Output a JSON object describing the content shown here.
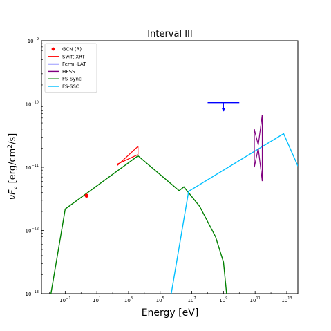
{
  "chart_data": {
    "type": "line",
    "title": "Interval III",
    "xlabel": "Energy [eV]",
    "ylabel": {
      "base": "νF",
      "sub": "ν",
      "text": " [erg/cm",
      "sup": "2",
      "tail": "/s]"
    },
    "xscale": "log",
    "yscale": "log",
    "xlim_exp": [
      -2.5,
      13.7
    ],
    "ylim_exp": [
      -13,
      -9
    ],
    "x_ticks": [
      {
        "base": "10",
        "exp": "−1",
        "e": -1
      },
      {
        "base": "10",
        "exp": "1",
        "e": 1
      },
      {
        "base": "10",
        "exp": "3",
        "e": 3
      },
      {
        "base": "10",
        "exp": "5",
        "e": 5
      },
      {
        "base": "10",
        "exp": "7",
        "e": 7
      },
      {
        "base": "10",
        "exp": "9",
        "e": 9
      },
      {
        "base": "10",
        "exp": "11",
        "e": 11
      },
      {
        "base": "10",
        "exp": "13",
        "e": 13
      }
    ],
    "y_ticks": [
      {
        "base": "10",
        "exp": "−13",
        "e": -13
      },
      {
        "base": "10",
        "exp": "−12",
        "e": -12
      },
      {
        "base": "10",
        "exp": "−11",
        "e": -11
      },
      {
        "base": "10",
        "exp": "−10",
        "e": -10
      },
      {
        "base": "10",
        "exp": "−9",
        "e": -9
      }
    ],
    "legend": {
      "placement": "upper-left",
      "entries": [
        {
          "label": "GCN (R)",
          "color": "#ff0000",
          "marker": "dot"
        },
        {
          "label": "Swift-XRT",
          "color": "#ff0000",
          "marker": "line"
        },
        {
          "label": "Fermi-LAT",
          "color": "#0000ff",
          "marker": "line"
        },
        {
          "label": "HESS",
          "color": "#800080",
          "marker": "line"
        },
        {
          "label": "FS-Sync",
          "color": "#008000",
          "marker": "line"
        },
        {
          "label": "FS-SSC",
          "color": "#00bfff",
          "marker": "line"
        }
      ]
    },
    "series": [
      {
        "name": "FS-Sync",
        "color": "#008000",
        "kind": "line",
        "log_points": [
          [
            -1.9,
            -13
          ],
          [
            -1.0,
            -11.66
          ],
          [
            3.6,
            -10.82
          ],
          [
            6.2,
            -11.37
          ],
          [
            6.5,
            -11.31
          ],
          [
            7.5,
            -11.62
          ],
          [
            8.5,
            -12.1
          ],
          [
            9.0,
            -12.5
          ],
          [
            9.2,
            -13
          ]
        ]
      },
      {
        "name": "FS-SSC",
        "color": "#00bfff",
        "kind": "line",
        "log_points": [
          [
            5.7,
            -13
          ],
          [
            6.8,
            -11.38
          ],
          [
            12.8,
            -10.47
          ],
          [
            13.7,
            -10.98
          ]
        ]
      },
      {
        "name": "GCN (R)",
        "color": "#ff0000",
        "kind": "point",
        "log_points": [
          [
            0.35,
            -11.45
          ]
        ]
      },
      {
        "name": "Swift-XRT",
        "color": "#ff0000",
        "kind": "bowtie",
        "lower": [
          [
            2.3,
            -10.95
          ],
          [
            3.6,
            -10.8
          ]
        ],
        "upper": [
          [
            2.3,
            -10.97
          ],
          [
            3.6,
            -10.67
          ]
        ],
        "x_range": [
          2.3,
          3.6
        ]
      },
      {
        "name": "Fermi-LAT",
        "color": "#0000ff",
        "kind": "upper_limit",
        "log_points": [
          [
            9.0,
            -9.98
          ]
        ],
        "x_range": [
          8.0,
          10.0
        ]
      },
      {
        "name": "HESS",
        "color": "#800080",
        "kind": "bowtie",
        "lower": [
          [
            10.95,
            -11.0
          ],
          [
            11.2,
            -10.7
          ],
          [
            11.45,
            -11.22
          ]
        ],
        "upper": [
          [
            10.95,
            -10.4
          ],
          [
            11.2,
            -10.65
          ],
          [
            11.45,
            -10.17
          ]
        ],
        "x_range": [
          10.95,
          11.45
        ]
      }
    ]
  }
}
